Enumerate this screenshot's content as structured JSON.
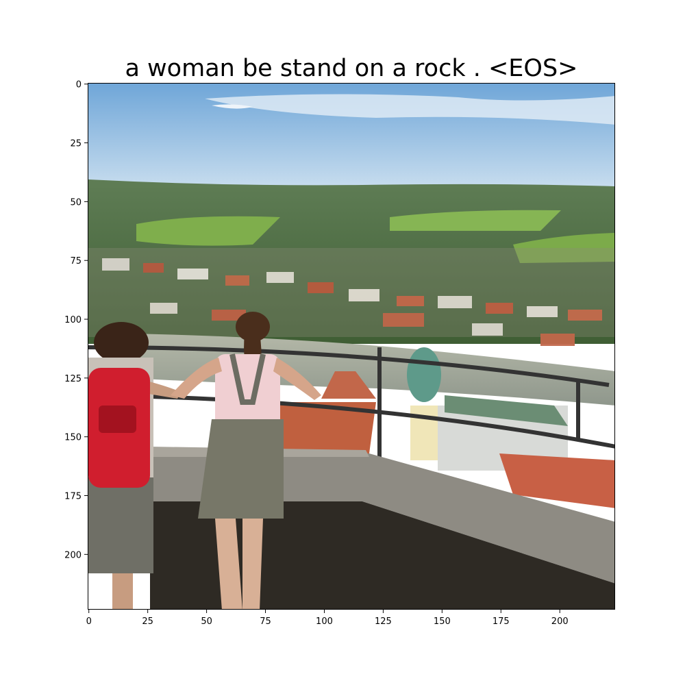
{
  "figure": {
    "title": "a woman be stand on a rock . <EOS>"
  },
  "axes": {
    "x_tick_labels": [
      "0",
      "25",
      "50",
      "75",
      "100",
      "125",
      "150",
      "175",
      "200"
    ],
    "y_tick_labels": [
      "0",
      "25",
      "50",
      "75",
      "100",
      "125",
      "150",
      "175",
      "200"
    ],
    "x_ticks": [
      0,
      25,
      50,
      75,
      100,
      125,
      150,
      175,
      200
    ],
    "y_ticks": [
      0,
      25,
      50,
      75,
      100,
      125,
      150,
      175,
      200
    ],
    "xlim": [
      0,
      224
    ],
    "ylim": [
      224,
      0
    ]
  },
  "image": {
    "description_icon": "photo-two-women-overlooking-town"
  }
}
